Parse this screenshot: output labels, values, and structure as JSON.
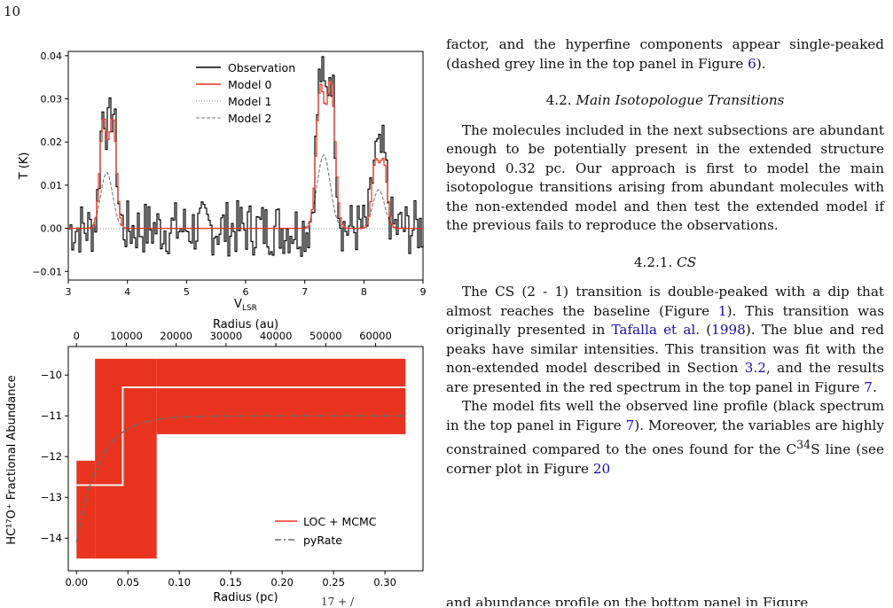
{
  "page_number": "10",
  "figure": {
    "top": {
      "ylabel": "T (K)",
      "xlabel": "V",
      "xlabel_sub": "LSR",
      "xticks": [
        "3",
        "4",
        "5",
        "6",
        "7",
        "8",
        "9"
      ],
      "yticks": [
        "0.04",
        "0.03",
        "0.02",
        "0.01",
        "0.00",
        "−0.01"
      ],
      "legend": [
        "Observation",
        "Model 0",
        "Model 1",
        "Model 2"
      ]
    },
    "bottom": {
      "top_axis_label": "Radius (au)",
      "top_ticks": [
        "0",
        "10000",
        "20000",
        "30000",
        "40000",
        "50000",
        "60000"
      ],
      "xlabel": "Radius (pc)",
      "xticks": [
        "0.00",
        "0.05",
        "0.10",
        "0.15",
        "0.20",
        "0.25",
        "0.30"
      ],
      "yticks": [
        "−10",
        "−11",
        "−12",
        "−13",
        "−14"
      ],
      "ylabel": "HC¹⁷O⁺ Fractional Abundance",
      "legend": [
        "LOC + MCMC",
        "pyRate"
      ]
    }
  },
  "chart_data": [
    {
      "type": "line",
      "xlabel": "V_LSR",
      "ylabel": "T (K)",
      "xlim": [
        3,
        9
      ],
      "ylim": [
        -0.012,
        0.041
      ],
      "series": [
        {
          "name": "Observation",
          "peaks": [
            {
              "x": 3.65,
              "y": 0.037
            },
            {
              "x": 7.38,
              "y": 0.039
            },
            {
              "x": 8.25,
              "y": 0.019
            }
          ],
          "noise_rms": 0.004
        },
        {
          "name": "Model 0",
          "peaks": [
            {
              "x": 3.65,
              "y": 0.029
            },
            {
              "x": 7.35,
              "y": 0.037
            },
            {
              "x": 8.25,
              "y": 0.018
            }
          ]
        },
        {
          "name": "Model 1",
          "values": "flat at 0.0"
        },
        {
          "name": "Model 2",
          "peaks": [
            {
              "x": 3.65,
              "y": 0.013
            },
            {
              "x": 7.3,
              "y": 0.017
            },
            {
              "x": 8.25,
              "y": 0.009
            }
          ]
        }
      ]
    },
    {
      "type": "line",
      "xlabel": "Radius (pc)",
      "ylabel": "HC17O+ Fractional Abundance",
      "xlim": [
        -0.008,
        0.337
      ],
      "ylim": [
        -14.8,
        -9.3
      ],
      "series": [
        {
          "name": "LOC + MCMC",
          "x": [
            0.0,
            0.045,
            0.045,
            0.32
          ],
          "y": [
            -12.7,
            -12.7,
            -10.3,
            -10.3
          ],
          "band": [
            {
              "x0": 0.0,
              "x1": 0.018,
              "y0": -14.5,
              "y1": -12.1
            },
            {
              "x0": 0.018,
              "x1": 0.078,
              "y0": -14.5,
              "y1": -9.6
            },
            {
              "x0": 0.078,
              "x1": 0.32,
              "y0": -11.45,
              "y1": -9.6
            }
          ]
        },
        {
          "name": "pyRate",
          "x": [
            0.0,
            0.005,
            0.015,
            0.03,
            0.05,
            0.08,
            0.12,
            0.2,
            0.32
          ],
          "y": [
            -14.1,
            -13.1,
            -12.6,
            -11.9,
            -11.35,
            -11.15,
            -11.06,
            -11.02,
            -11.0
          ]
        }
      ]
    }
  ],
  "text": {
    "p0": "factor, and the hyperfine components appear single-peaked (dashed grey line in the top panel in Figure",
    "p0_link": "6",
    "p0_end": ").",
    "h_4_2": "4.2.",
    "h_4_2_title": "Main Isotopologue Transitions",
    "p1": "The molecules included in the next subsections are abundant enough to be potentially present in the extended structure beyond 0.32 pc. Our approach is first to model the main isotopologue transitions arising from abundant molecules with the non-extended model and then test the extended model if the previous fails to reproduce the observations.",
    "h_4_2_1": "4.2.1.",
    "h_4_2_1_title": "CS",
    "p2a": "The CS (2 - 1) transition is double-peaked with a dip that almost reaches the baseline (Figure",
    "p2_link1": "1",
    "p2b": "). This transition was originally presented in",
    "p2_link2": "Tafalla et al.",
    "p2c": "(",
    "p2_link3": "1998",
    "p2d": "). The blue and red peaks have similar intensities. This transition was fit with the non-extended model described in Section",
    "p2_link4": "3.2",
    "p2e": ", and the results are presented in the red spectrum in the top panel in Figure",
    "p2_link5": "7",
    "p2f": ".",
    "p3a": "The model fits well the observed line profile (black spectrum in the top panel in Figure",
    "p3_link1": "7",
    "p3b": "). Moreover, the variables are highly constrained compared to the ones found for the C",
    "p3_sup": "34",
    "p3c": "S line (see corner plot in Figure",
    "p3_link2": "20",
    "p3_cut": "and abundance profile on the bottom panel in Figure",
    "caption_cut": "17 + /"
  }
}
